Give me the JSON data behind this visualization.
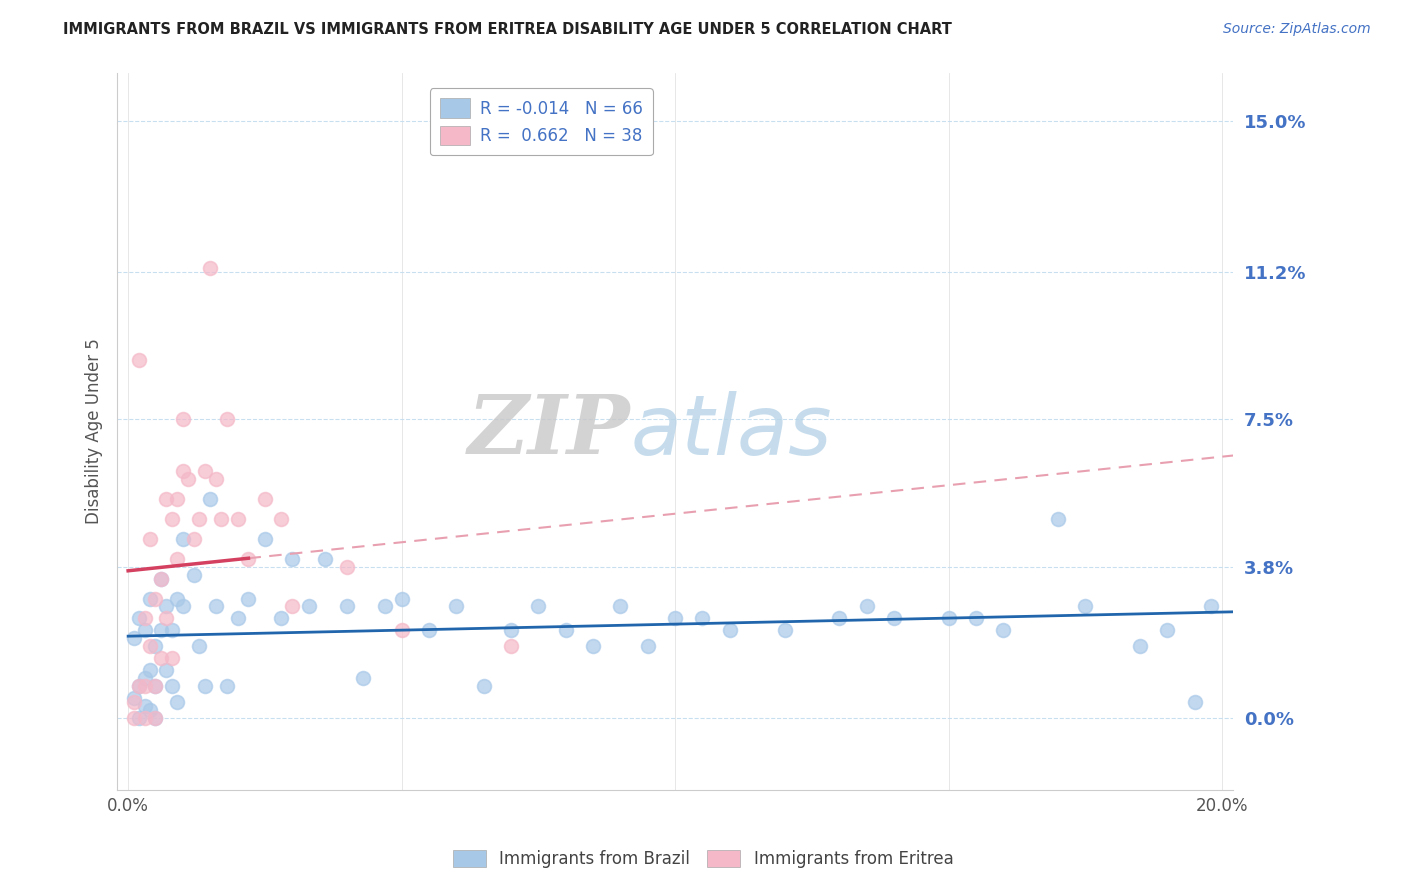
{
  "title": "IMMIGRANTS FROM BRAZIL VS IMMIGRANTS FROM ERITREA DISABILITY AGE UNDER 5 CORRELATION CHART",
  "source": "Source: ZipAtlas.com",
  "ylabel": "Disability Age Under 5",
  "xlim": [
    -0.002,
    0.202
  ],
  "ylim": [
    -0.018,
    0.162
  ],
  "yticks": [
    0.0,
    0.038,
    0.075,
    0.112,
    0.15
  ],
  "ytick_labels": [
    "0.0%",
    "3.8%",
    "7.5%",
    "11.2%",
    "15.0%"
  ],
  "xticks": [
    0.0,
    0.05,
    0.1,
    0.15,
    0.2
  ],
  "xtick_labels": [
    "0.0%",
    "",
    "",
    "",
    "20.0%"
  ],
  "brazil_R": -0.014,
  "brazil_N": 66,
  "eritrea_R": 0.662,
  "eritrea_N": 38,
  "brazil_color": "#a8c8e8",
  "eritrea_color": "#f4b8c8",
  "brazil_line_color": "#2166ac",
  "eritrea_line_color": "#d44060",
  "eritrea_dash_color": "#e8a0b0",
  "legend_brazil": "Immigrants from Brazil",
  "legend_eritrea": "Immigrants from Eritrea",
  "watermark_zip": "ZIP",
  "watermark_atlas": "atlas",
  "brazil_x": [
    0.001,
    0.001,
    0.002,
    0.002,
    0.002,
    0.003,
    0.003,
    0.003,
    0.004,
    0.004,
    0.004,
    0.005,
    0.005,
    0.005,
    0.006,
    0.006,
    0.007,
    0.007,
    0.008,
    0.008,
    0.009,
    0.009,
    0.01,
    0.01,
    0.012,
    0.013,
    0.014,
    0.015,
    0.016,
    0.018,
    0.02,
    0.022,
    0.025,
    0.028,
    0.03,
    0.033,
    0.036,
    0.04,
    0.043,
    0.047,
    0.05,
    0.055,
    0.06,
    0.065,
    0.07,
    0.075,
    0.08,
    0.085,
    0.09,
    0.095,
    0.1,
    0.105,
    0.11,
    0.12,
    0.13,
    0.135,
    0.14,
    0.15,
    0.155,
    0.16,
    0.17,
    0.175,
    0.185,
    0.19,
    0.195,
    0.198
  ],
  "brazil_y": [
    0.02,
    0.005,
    0.025,
    0.008,
    0.0,
    0.022,
    0.01,
    0.003,
    0.03,
    0.012,
    0.002,
    0.0,
    0.018,
    0.008,
    0.035,
    0.022,
    0.028,
    0.012,
    0.022,
    0.008,
    0.03,
    0.004,
    0.045,
    0.028,
    0.036,
    0.018,
    0.008,
    0.055,
    0.028,
    0.008,
    0.025,
    0.03,
    0.045,
    0.025,
    0.04,
    0.028,
    0.04,
    0.028,
    0.01,
    0.028,
    0.03,
    0.022,
    0.028,
    0.008,
    0.022,
    0.028,
    0.022,
    0.018,
    0.028,
    0.018,
    0.025,
    0.025,
    0.022,
    0.022,
    0.025,
    0.028,
    0.025,
    0.025,
    0.025,
    0.022,
    0.05,
    0.028,
    0.018,
    0.022,
    0.004,
    0.028
  ],
  "eritrea_x": [
    0.001,
    0.001,
    0.002,
    0.002,
    0.003,
    0.003,
    0.003,
    0.004,
    0.004,
    0.005,
    0.005,
    0.005,
    0.006,
    0.006,
    0.007,
    0.007,
    0.008,
    0.008,
    0.009,
    0.009,
    0.01,
    0.01,
    0.011,
    0.012,
    0.013,
    0.014,
    0.015,
    0.016,
    0.017,
    0.018,
    0.02,
    0.022,
    0.025,
    0.028,
    0.03,
    0.04,
    0.05,
    0.07
  ],
  "eritrea_y": [
    0.0,
    0.004,
    0.09,
    0.008,
    0.0,
    0.025,
    0.008,
    0.018,
    0.045,
    0.0,
    0.008,
    0.03,
    0.035,
    0.015,
    0.055,
    0.025,
    0.05,
    0.015,
    0.04,
    0.055,
    0.062,
    0.075,
    0.06,
    0.045,
    0.05,
    0.062,
    0.113,
    0.06,
    0.05,
    0.075,
    0.05,
    0.04,
    0.055,
    0.05,
    0.028,
    0.038,
    0.022,
    0.018
  ]
}
